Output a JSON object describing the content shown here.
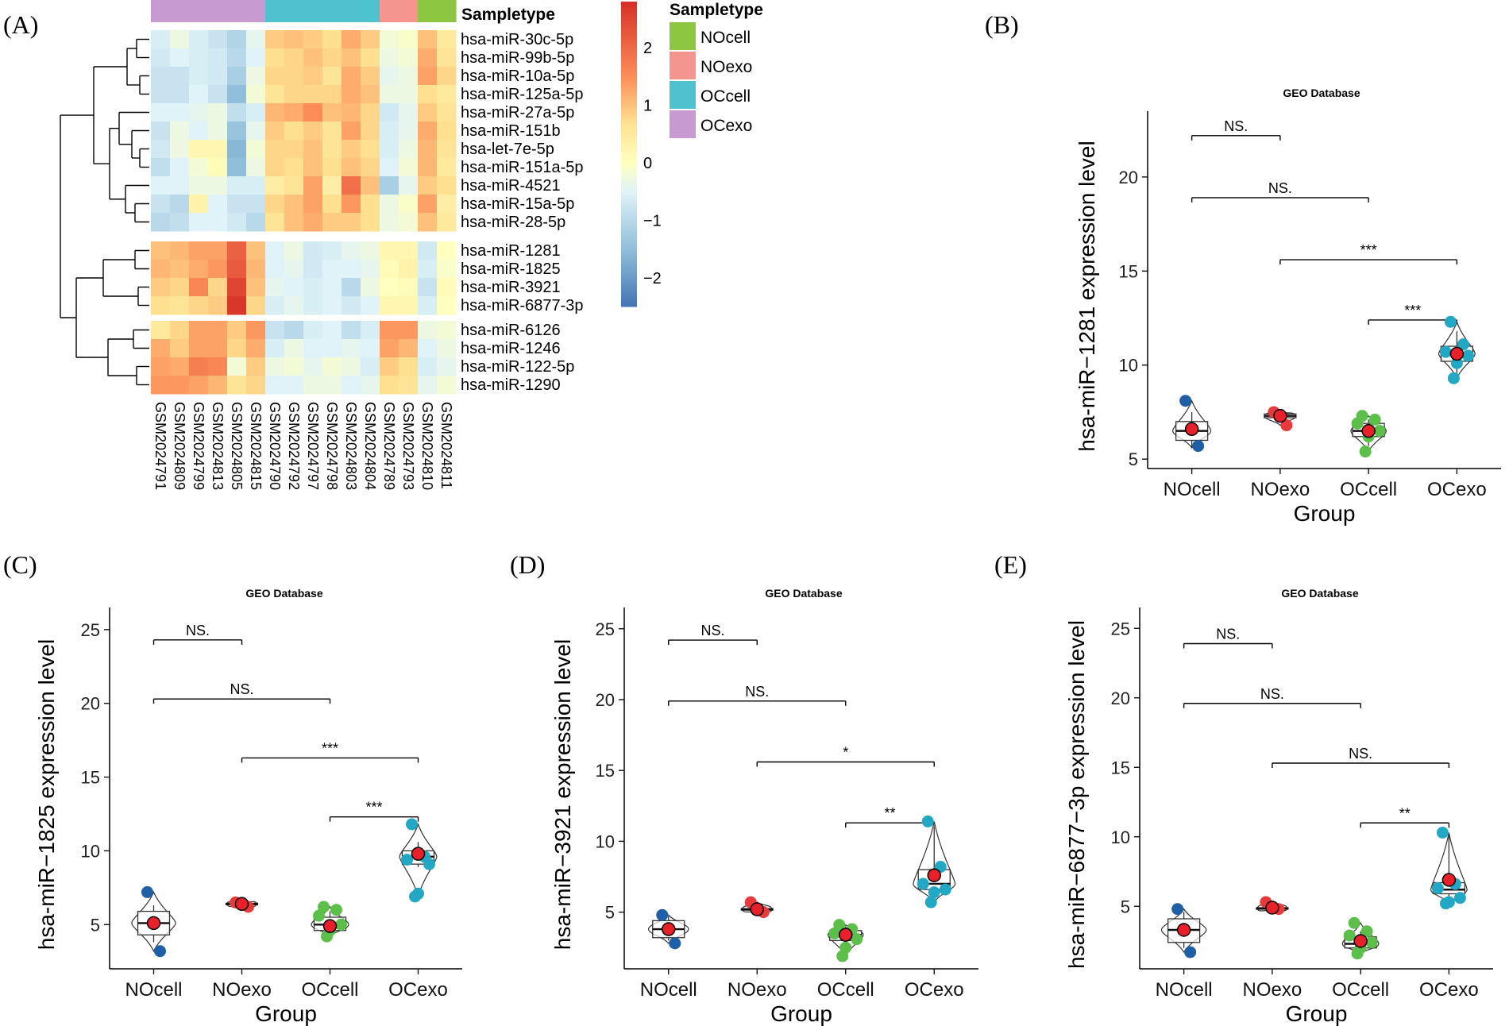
{
  "panel_letters": [
    "(A)",
    "(B)",
    "(C)",
    "(D)",
    "(E)"
  ],
  "colors": {
    "NOcell": "#8dc641",
    "NOexo": "#f4958f",
    "OCcell": "#4ec3cf",
    "OCexo": "#c79ad2",
    "dot_NOcell": "#1f5fa6",
    "dot_NOexo": "#e83a3a",
    "dot_OCcell": "#5bbf4a",
    "dot_OCexo": "#22a8c4",
    "mean": "#e8202a"
  },
  "chart_data": [
    {
      "type": "heatmap",
      "panel": "(A)",
      "title": "",
      "samples": [
        "GSM2024791",
        "GSM2024809",
        "GSM2024799",
        "GSM2024813",
        "GSM2024805",
        "GSM2024815",
        "GSM2024790",
        "GSM2024792",
        "GSM2024797",
        "GSM2024798",
        "GSM2024803",
        "GSM2024804",
        "GSM2024789",
        "GSM2024793",
        "GSM2024810",
        "GSM2024811"
      ],
      "sampletype": [
        "OCexo",
        "OCexo",
        "OCexo",
        "OCexo",
        "OCexo",
        "OCexo",
        "OCcell",
        "OCcell",
        "OCcell",
        "OCcell",
        "OCcell",
        "OCcell",
        "NOexo",
        "NOexo",
        "NOcell",
        "NOcell"
      ],
      "annotation_label": "Sampletype",
      "legend": {
        "title": "Sampletype",
        "entries": [
          "NOcell",
          "NOexo",
          "OCcell",
          "OCexo"
        ]
      },
      "colorbar": {
        "min": -2.5,
        "max": 2.8,
        "ticks": [
          2,
          1,
          0,
          -1,
          -2
        ],
        "tick_labels": [
          "2",
          "1",
          "0",
          "−1",
          "−2"
        ]
      },
      "row_groups": [
        {
          "genes": [
            "hsa-miR-30c-5p",
            "hsa-miR-99b-5p",
            "hsa-miR-10a-5p",
            "hsa-miR-125a-5p",
            "hsa-miR-27a-5p",
            "hsa-miR-151b",
            "hsa-let-7e-5p",
            "hsa-miR-151a-5p",
            "hsa-miR-4521",
            "hsa-miR-15a-5p",
            "hsa-miR-28-5p"
          ]
        },
        {
          "genes": [
            "hsa-miR-1281",
            "hsa-miR-1825",
            "hsa-miR-3921",
            "hsa-miR-6877-3p"
          ]
        },
        {
          "genes": [
            "hsa-miR-6126",
            "hsa-miR-1246",
            "hsa-miR-122-5p",
            "hsa-miR-1290"
          ]
        }
      ],
      "values": [
        [
          -0.6,
          -0.3,
          -0.6,
          -0.8,
          -1.1,
          -0.4,
          0.9,
          1.0,
          0.9,
          0.7,
          1.2,
          0.9,
          -0.2,
          -0.1,
          1.0,
          0.5
        ],
        [
          -0.7,
          -0.5,
          -0.6,
          -0.7,
          -1.0,
          -0.5,
          0.7,
          0.8,
          1.0,
          0.8,
          1.0,
          0.7,
          -0.3,
          -0.2,
          1.2,
          0.6
        ],
        [
          -0.8,
          -0.8,
          -0.6,
          -0.7,
          -1.2,
          -0.3,
          0.8,
          0.8,
          0.9,
          0.6,
          1.2,
          0.9,
          -0.4,
          -0.3,
          1.3,
          0.8
        ],
        [
          -0.8,
          -0.8,
          -0.5,
          -0.8,
          -1.5,
          -0.2,
          0.6,
          0.8,
          0.8,
          0.8,
          1.2,
          1.0,
          -0.3,
          -0.3,
          0.7,
          0.5
        ],
        [
          -0.5,
          -0.5,
          -0.4,
          -0.3,
          -0.9,
          -0.6,
          1.1,
          1.2,
          1.5,
          1.0,
          1.1,
          0.8,
          -0.7,
          -0.4,
          0.9,
          0.6
        ],
        [
          -0.8,
          -0.3,
          -0.5,
          -0.3,
          -1.4,
          -0.4,
          0.9,
          0.7,
          0.9,
          0.6,
          1.3,
          0.8,
          -0.6,
          -0.4,
          1.2,
          0.7
        ],
        [
          -0.7,
          -0.3,
          0.2,
          0.2,
          -1.6,
          -0.2,
          0.8,
          0.8,
          1.0,
          0.6,
          0.9,
          0.7,
          -0.6,
          -0.3,
          1.1,
          0.6
        ],
        [
          -0.9,
          -0.5,
          -0.2,
          0.1,
          -1.5,
          -0.3,
          0.8,
          0.7,
          1.0,
          0.7,
          1.0,
          0.8,
          -0.5,
          -0.2,
          1.1,
          0.5
        ],
        [
          -0.5,
          -0.5,
          -0.3,
          -0.3,
          -0.6,
          -0.6,
          0.4,
          0.6,
          1.3,
          0.4,
          1.9,
          1.0,
          -1.2,
          -0.4,
          0.9,
          0.7
        ],
        [
          -0.8,
          -1.0,
          0.3,
          -0.5,
          -0.8,
          -0.8,
          0.8,
          1.0,
          1.3,
          0.7,
          1.4,
          0.7,
          -0.3,
          -0.1,
          1.3,
          0.4
        ],
        [
          -1.0,
          -0.9,
          -0.5,
          -0.5,
          -0.7,
          -1.0,
          0.6,
          1.0,
          1.2,
          0.9,
          0.9,
          0.7,
          -0.3,
          -0.2,
          1.0,
          0.5
        ],
        [
          1.0,
          1.1,
          1.3,
          1.3,
          2.1,
          1.0,
          -0.5,
          -0.3,
          -0.7,
          -0.6,
          -0.4,
          -0.3,
          0.2,
          0.2,
          -0.7,
          0.0
        ],
        [
          1.1,
          1.0,
          1.2,
          1.4,
          2.2,
          1.1,
          -0.5,
          -0.4,
          -0.7,
          -0.5,
          -0.5,
          -0.4,
          0.1,
          0.3,
          -0.6,
          -0.1
        ],
        [
          0.9,
          0.8,
          1.6,
          0.8,
          2.5,
          1.0,
          -0.4,
          -0.5,
          -0.6,
          -0.5,
          -1.0,
          -0.3,
          0.0,
          0.1,
          -0.8,
          0.1
        ],
        [
          0.7,
          0.6,
          0.8,
          0.9,
          2.7,
          0.8,
          -0.6,
          -0.4,
          -0.6,
          -0.5,
          -0.7,
          -0.5,
          0.2,
          0.2,
          -0.6,
          0.0
        ],
        [
          0.5,
          0.8,
          1.3,
          1.3,
          0.9,
          1.4,
          -0.8,
          -1.0,
          -0.6,
          -0.5,
          -0.9,
          -0.6,
          1.4,
          1.4,
          -0.3,
          -0.2
        ],
        [
          1.2,
          0.9,
          1.3,
          1.3,
          0.8,
          1.2,
          -0.6,
          -0.3,
          -0.5,
          -0.5,
          -0.4,
          -0.5,
          1.3,
          1.1,
          -0.5,
          -0.3
        ],
        [
          1.3,
          1.2,
          1.7,
          1.6,
          -0.2,
          0.9,
          -0.3,
          -0.2,
          -0.4,
          -0.2,
          -0.3,
          -0.6,
          0.9,
          0.7,
          -0.6,
          -0.4
        ],
        [
          1.4,
          1.4,
          1.3,
          1.1,
          0.6,
          0.8,
          -0.5,
          -0.5,
          -0.3,
          -0.3,
          -0.5,
          -0.4,
          0.7,
          0.6,
          -0.4,
          -0.2
        ]
      ]
    },
    {
      "type": "violin-box",
      "panel": "(B)",
      "title": "GEO Database",
      "xlabel": "Group",
      "ylabel": "hsa-miR−1281 expression level",
      "categories": [
        "NOcell",
        "NOexo",
        "OCcell",
        "OCexo"
      ],
      "ylim": [
        4.5,
        23.5
      ],
      "yticks": [
        5,
        10,
        15,
        20
      ],
      "points": {
        "NOcell": [
          8.1,
          5.7
        ],
        "NOexo": [
          7.5,
          6.8
        ],
        "OCcell": [
          7.3,
          7.1,
          6.9,
          6.5,
          6.2,
          5.4
        ],
        "OCexo": [
          12.3,
          11.1,
          10.7,
          10.5,
          10.1,
          9.3
        ]
      },
      "box": {
        "NOcell": [
          5.6,
          6.0,
          6.5,
          7.0,
          7.5
        ],
        "NOexo": [
          7.0,
          7.2,
          7.3,
          7.4,
          7.5
        ],
        "OCcell": [
          5.7,
          6.2,
          6.5,
          6.9,
          7.1
        ],
        "OCexo": [
          9.5,
          10.2,
          10.6,
          11.0,
          11.8
        ]
      },
      "means": {
        "NOcell": 6.6,
        "NOexo": 7.3,
        "OCcell": 6.5,
        "OCexo": 10.6
      },
      "comparisons": [
        {
          "from": "NOcell",
          "to": "NOexo",
          "y": 22.2,
          "label": "NS."
        },
        {
          "from": "NOcell",
          "to": "OCcell",
          "y": 18.9,
          "label": "NS."
        },
        {
          "from": "NOexo",
          "to": "OCexo",
          "y": 15.6,
          "label": "***"
        },
        {
          "from": "OCcell",
          "to": "OCexo",
          "y": 12.4,
          "label": "***"
        }
      ]
    },
    {
      "type": "violin-box",
      "panel": "(C)",
      "title": "GEO Database",
      "xlabel": "Group",
      "ylabel": "hsa-miR−1825 expression level",
      "categories": [
        "NOcell",
        "NOexo",
        "OCcell",
        "OCexo"
      ],
      "ylim": [
        2.0,
        26.5
      ],
      "yticks": [
        5,
        10,
        15,
        20,
        25
      ],
      "points": {
        "NOcell": [
          7.2,
          3.2
        ],
        "NOexo": [
          6.5,
          6.2
        ],
        "OCcell": [
          6.2,
          6.0,
          5.6,
          5.0,
          4.6,
          4.2
        ],
        "OCexo": [
          11.8,
          9.6,
          9.4,
          9.1,
          7.1,
          6.9
        ]
      },
      "box": {
        "NOcell": [
          3.8,
          4.3,
          5.1,
          5.9,
          6.3
        ],
        "NOexo": [
          6.3,
          6.35,
          6.4,
          6.45,
          6.5
        ],
        "OCcell": [
          4.4,
          4.6,
          5.0,
          5.5,
          5.9
        ],
        "OCexo": [
          8.9,
          9.1,
          9.6,
          10.0,
          10.6
        ]
      },
      "means": {
        "NOcell": 5.1,
        "NOexo": 6.4,
        "OCcell": 4.9,
        "OCexo": 9.8
      },
      "comparisons": [
        {
          "from": "NOcell",
          "to": "NOexo",
          "y": 24.3,
          "label": "NS."
        },
        {
          "from": "NOcell",
          "to": "OCcell",
          "y": 20.3,
          "label": "NS."
        },
        {
          "from": "NOexo",
          "to": "OCexo",
          "y": 16.3,
          "label": "***"
        },
        {
          "from": "OCcell",
          "to": "OCexo",
          "y": 12.3,
          "label": "***"
        }
      ]
    },
    {
      "type": "violin-box",
      "panel": "(D)",
      "title": "GEO Database",
      "xlabel": "Group",
      "ylabel": "hsa-miR−3921 expression level",
      "categories": [
        "NOcell",
        "NOexo",
        "OCcell",
        "OCexo"
      ],
      "ylim": [
        1.0,
        26.5
      ],
      "yticks": [
        5,
        10,
        15,
        20,
        25
      ],
      "points": {
        "NOcell": [
          4.8,
          2.8
        ],
        "NOexo": [
          5.7,
          5.0
        ],
        "OCcell": [
          4.1,
          3.8,
          3.5,
          3.1,
          2.5,
          1.9
        ],
        "OCexo": [
          11.4,
          8.2,
          7.0,
          6.6,
          6.4,
          5.7
        ]
      },
      "box": {
        "NOcell": [
          3.0,
          3.2,
          3.8,
          4.4,
          4.7
        ],
        "NOexo": [
          5.1,
          5.15,
          5.2,
          5.25,
          5.3
        ],
        "OCcell": [
          2.6,
          3.0,
          3.4,
          3.7,
          4.0
        ],
        "OCexo": [
          6.0,
          6.6,
          7.0,
          8.0,
          11.0
        ]
      },
      "means": {
        "NOcell": 3.8,
        "NOexo": 5.2,
        "OCcell": 3.4,
        "OCexo": 7.6
      },
      "comparisons": [
        {
          "from": "NOcell",
          "to": "NOexo",
          "y": 24.2,
          "label": "NS."
        },
        {
          "from": "NOcell",
          "to": "OCcell",
          "y": 19.9,
          "label": "NS."
        },
        {
          "from": "NOexo",
          "to": "OCexo",
          "y": 15.6,
          "label": "*"
        },
        {
          "from": "OCcell",
          "to": "OCexo",
          "y": 11.3,
          "label": "**"
        }
      ]
    },
    {
      "type": "violin-box",
      "panel": "(E)",
      "title": "GEO Database",
      "xlabel": "Group",
      "ylabel": "hsa-miR−6877−3p expression level",
      "categories": [
        "NOcell",
        "NOexo",
        "OCcell",
        "OCexo"
      ],
      "ylim": [
        0.5,
        26.5
      ],
      "yticks": [
        5,
        10,
        15,
        20,
        25
      ],
      "points": {
        "NOcell": [
          4.8,
          1.7
        ],
        "NOexo": [
          5.3,
          4.8
        ],
        "OCcell": [
          3.8,
          3.2,
          2.9,
          2.4,
          2.0,
          1.6
        ],
        "OCexo": [
          10.3,
          6.6,
          6.3,
          5.6,
          5.3,
          5.2
        ]
      },
      "box": {
        "NOcell": [
          2.0,
          2.4,
          3.3,
          4.1,
          4.6
        ],
        "NOexo": [
          4.7,
          4.8,
          4.85,
          4.9,
          5.0
        ],
        "OCcell": [
          1.8,
          2.0,
          2.3,
          2.8,
          3.2
        ],
        "OCexo": [
          5.6,
          5.9,
          6.2,
          6.7,
          10.2
        ]
      },
      "means": {
        "NOcell": 3.3,
        "NOexo": 4.9,
        "OCcell": 2.5,
        "OCexo": 6.9
      },
      "comparisons": [
        {
          "from": "NOcell",
          "to": "NOexo",
          "y": 23.9,
          "label": "NS."
        },
        {
          "from": "NOcell",
          "to": "OCcell",
          "y": 19.6,
          "label": "NS."
        },
        {
          "from": "NOexo",
          "to": "OCexo",
          "y": 15.3,
          "label": "NS."
        },
        {
          "from": "OCcell",
          "to": "OCexo",
          "y": 11.0,
          "label": "**"
        }
      ]
    }
  ]
}
